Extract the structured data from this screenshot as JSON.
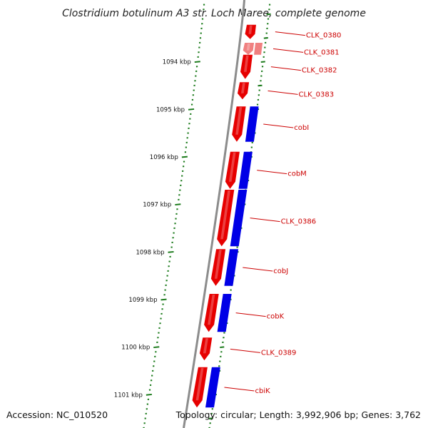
{
  "title": "Clostridium botulinum A3 str. Loch Maree, complete genome",
  "footer": {
    "accession": "Accession: NC_010520",
    "topology": "Topology: circular; Length: 3,992,906 bp; Genes: 3,762"
  },
  "colors": {
    "forward_gene": "#e60000",
    "forward_gene_light": "#f08080",
    "cds_blue": "#0000e6",
    "tick_green": "#1a7a1a",
    "backbone": "#8c8c8c",
    "label": "#cc0000"
  },
  "position_markers": [
    {
      "label": "1094 kbp",
      "kbp": 1094
    },
    {
      "label": "1095 kbp",
      "kbp": 1095
    },
    {
      "label": "1096 kbp",
      "kbp": 1096
    },
    {
      "label": "1097 kbp",
      "kbp": 1097
    },
    {
      "label": "1098 kbp",
      "kbp": 1098
    },
    {
      "label": "1099 kbp",
      "kbp": 1099
    },
    {
      "label": "1100 kbp",
      "kbp": 1100
    },
    {
      "label": "1101 kbp",
      "kbp": 1101
    }
  ],
  "genes": [
    {
      "label": "CLK_0380",
      "start_kbp": 1093.22,
      "end_kbp": 1093.52,
      "cds": false,
      "pale": false
    },
    {
      "label": "CLK_0381",
      "start_kbp": 1093.6,
      "end_kbp": 1093.85,
      "cds": false,
      "pale": true
    },
    {
      "label": "CLK_0382",
      "start_kbp": 1093.85,
      "end_kbp": 1094.36,
      "cds": false,
      "pale": false
    },
    {
      "label": "CLK_0383",
      "start_kbp": 1094.43,
      "end_kbp": 1094.79,
      "cds": false,
      "pale": false
    },
    {
      "label": "cobI",
      "start_kbp": 1094.94,
      "end_kbp": 1095.68,
      "cds": true,
      "pale": false
    },
    {
      "label": "cobM",
      "start_kbp": 1095.89,
      "end_kbp": 1096.67,
      "cds": true,
      "pale": false
    },
    {
      "label": "CLK_0386",
      "start_kbp": 1096.69,
      "end_kbp": 1097.88,
      "cds": true,
      "pale": false
    },
    {
      "label": "cobJ",
      "start_kbp": 1097.94,
      "end_kbp": 1098.71,
      "cds": true,
      "pale": false
    },
    {
      "label": "cobK",
      "start_kbp": 1098.88,
      "end_kbp": 1099.68,
      "cds": true,
      "pale": false
    },
    {
      "label": "CLK_0389",
      "start_kbp": 1099.8,
      "end_kbp": 1100.28,
      "cds": false,
      "pale": false
    },
    {
      "label": "cbiK",
      "start_kbp": 1100.42,
      "end_kbp": 1101.27,
      "cds": true,
      "pale": false
    }
  ]
}
